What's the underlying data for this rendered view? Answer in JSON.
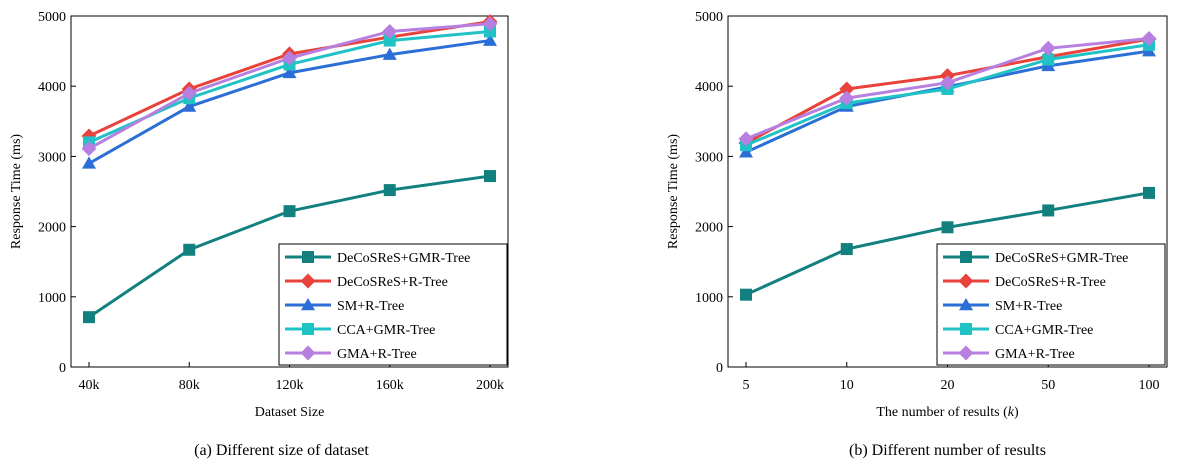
{
  "chart_data": [
    {
      "type": "line",
      "caption": "(a) Different size of dataset",
      "xlabel": "Dataset Size",
      "ylabel": "Response Time (ms)",
      "categories": [
        "40k",
        "80k",
        "120k",
        "160k",
        "200k"
      ],
      "ylim": [
        0,
        5000
      ],
      "yticks": [
        0,
        1000,
        2000,
        3000,
        4000,
        5000
      ],
      "grid": false,
      "legend_position": "bottom-right",
      "series": [
        {
          "name": "DeCoSReS+GMR-Tree",
          "color": "#138080",
          "marker": "square",
          "values": [
            710,
            1670,
            2220,
            2520,
            2720
          ]
        },
        {
          "name": "DeCoSReS+R-Tree",
          "color": "#e8423a",
          "marker": "diamond",
          "values": [
            3290,
            3960,
            4460,
            4700,
            4920
          ]
        },
        {
          "name": "SM+R-Tree",
          "color": "#2b6fd6",
          "marker": "triangle",
          "values": [
            2900,
            3710,
            4190,
            4450,
            4650
          ]
        },
        {
          "name": "CCA+GMR-Tree",
          "color": "#20c2c6",
          "marker": "square",
          "values": [
            3200,
            3830,
            4310,
            4650,
            4780
          ]
        },
        {
          "name": "GMA+R-Tree",
          "color": "#b67fe0",
          "marker": "diamond",
          "values": [
            3110,
            3900,
            4400,
            4780,
            4890
          ]
        }
      ]
    },
    {
      "type": "line",
      "caption": "(b) Different number of results",
      "xlabel": "The number of results (k)",
      "ylabel": "Response Time (ms)",
      "categories": [
        "5",
        "10",
        "20",
        "50",
        "100"
      ],
      "ylim": [
        0,
        5000
      ],
      "yticks": [
        0,
        1000,
        2000,
        3000,
        4000,
        5000
      ],
      "grid": false,
      "legend_position": "bottom-right",
      "series": [
        {
          "name": "DeCoSReS+GMR-Tree",
          "color": "#138080",
          "marker": "square",
          "values": [
            1030,
            1680,
            1990,
            2230,
            2480
          ]
        },
        {
          "name": "DeCoSReS+R-Tree",
          "color": "#e8423a",
          "marker": "diamond",
          "values": [
            3190,
            3960,
            4150,
            4420,
            4670
          ]
        },
        {
          "name": "SM+R-Tree",
          "color": "#2b6fd6",
          "marker": "triangle",
          "values": [
            3060,
            3710,
            3990,
            4290,
            4500
          ]
        },
        {
          "name": "CCA+GMR-Tree",
          "color": "#20c2c6",
          "marker": "square",
          "values": [
            3160,
            3760,
            3960,
            4380,
            4590
          ]
        },
        {
          "name": "GMA+R-Tree",
          "color": "#b67fe0",
          "marker": "diamond",
          "values": [
            3250,
            3830,
            4050,
            4540,
            4680
          ]
        }
      ]
    }
  ]
}
